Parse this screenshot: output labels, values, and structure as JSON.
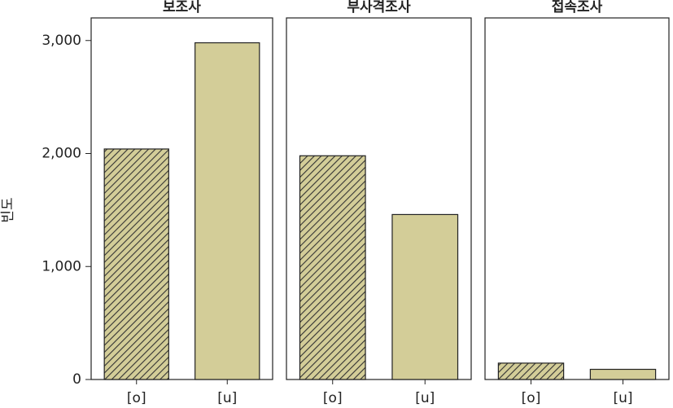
{
  "chart_data": [
    {
      "type": "bar",
      "title": "보조사",
      "ylabel": "빈도",
      "categories": [
        "[o]",
        "[u]"
      ],
      "values": [
        2040,
        2980
      ],
      "hatched": [
        true,
        false
      ],
      "color": "#d3cd98",
      "ylim": [
        0,
        3200
      ],
      "yticks": [
        0,
        {
          "value": 1000,
          "label": "1,000"
        },
        {
          "value": 2000,
          "label": "2,000"
        },
        {
          "value": 3000,
          "label": "3,000"
        }
      ]
    },
    {
      "type": "bar",
      "title": "부사격조사",
      "categories": [
        "[o]",
        "[u]"
      ],
      "values": [
        1980,
        1460
      ],
      "hatched": [
        true,
        false
      ],
      "color": "#d3cd98",
      "ylim": [
        0,
        3200
      ]
    },
    {
      "type": "bar",
      "title": "접속조사",
      "categories": [
        "[o]",
        "[u]"
      ],
      "values": [
        145,
        90
      ],
      "hatched": [
        true,
        false
      ],
      "color": "#d3cd98",
      "ylim": [
        0,
        3200
      ]
    }
  ]
}
